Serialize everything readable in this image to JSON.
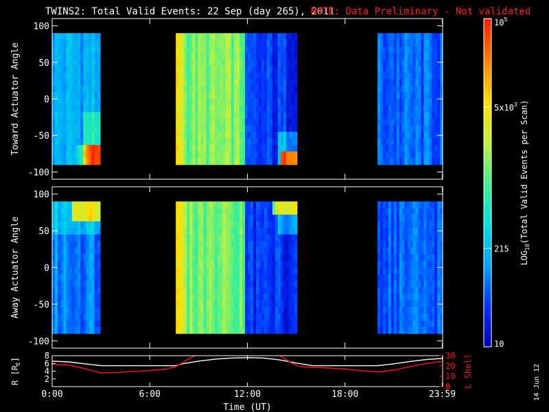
{
  "header": {
    "title": "TWINS2: Total Valid Events: 22 Sep (day 265), 2011",
    "note": "NOTE: Data Preliminary - Not validated",
    "note_color": "#ff1a1a"
  },
  "stamp": "14 Jun 12",
  "chart_data": [
    {
      "type": "heatmap",
      "ylabel": "Toward Actuator Angle",
      "ylim": [
        -110,
        110
      ],
      "yticks": [
        100,
        50,
        0,
        -50,
        -100
      ],
      "x_unit": "hours UT",
      "data_y_range": [
        -90,
        90
      ],
      "blocks": [
        {
          "x": [
            0.0,
            2.95
          ],
          "base_level": 0.28,
          "features": "orange/yellow enhancement near -80 to -90 degrees after ~1:30 UT"
        },
        {
          "x": [
            7.6,
            11.85
          ],
          "base_level": 0.55,
          "features": "yellow/green band, yellow near start"
        },
        {
          "x": [
            11.85,
            15.05
          ],
          "base_level": 0.12,
          "features": "dark blue with orange enhancement near -80 degrees at end"
        },
        {
          "x": [
            20.0,
            24.0
          ],
          "base_level": 0.18,
          "features": "uniform blue"
        }
      ]
    },
    {
      "type": "heatmap",
      "ylabel": "Away Actuator Angle",
      "ylim": [
        -110,
        110
      ],
      "yticks": [
        100,
        50,
        0,
        -50,
        -100
      ],
      "x_unit": "hours UT",
      "data_y_range": [
        -90,
        90
      ],
      "blocks": [
        {
          "x": [
            0.0,
            2.95
          ],
          "base_level": 0.22,
          "features": "yellow/green near +80 to +90 degrees"
        },
        {
          "x": [
            7.6,
            11.85
          ],
          "base_level": 0.55,
          "features": "yellow/green band"
        },
        {
          "x": [
            11.85,
            15.05
          ],
          "base_level": 0.12,
          "features": "dark blue with yellow near +90 degrees"
        },
        {
          "x": [
            20.0,
            24.0
          ],
          "base_level": 0.18,
          "features": "uniform blue"
        }
      ]
    },
    {
      "type": "line",
      "ylabel_left": "R [R",
      "ylabel_left_sub": "E",
      "ylabel_left_end": "]",
      "ylabel_right": "L Shell",
      "ylim_left": [
        0,
        8
      ],
      "ylim_right": [
        0,
        30
      ],
      "yticks_left": [
        2,
        4,
        6,
        8
      ],
      "yticks_right": [
        0,
        10,
        20,
        30
      ],
      "xlabel": "Time (UT)",
      "xlim": [
        0,
        24
      ],
      "xticks": [
        {
          "v": 0,
          "label": "0:00"
        },
        {
          "v": 6,
          "label": "6:00"
        },
        {
          "v": 12,
          "label": "12:00"
        },
        {
          "v": 18,
          "label": "18:00"
        },
        {
          "v": 23.98,
          "label": "23:59"
        }
      ],
      "series": [
        {
          "color": "#ffffff",
          "axis": "left",
          "x": [
            0,
            1,
            2,
            3,
            4,
            5,
            6,
            7,
            7.6,
            8,
            9,
            10,
            11,
            12,
            13,
            14,
            15,
            16,
            17,
            18,
            19,
            20,
            21,
            22,
            23,
            24
          ],
          "y": [
            6.6,
            6.4,
            5.9,
            5.4,
            5.4,
            5.4,
            5.4,
            5.4,
            5.4,
            5.9,
            6.6,
            7.1,
            7.4,
            7.5,
            7.4,
            6.9,
            6.1,
            5.4,
            5.4,
            5.4,
            5.4,
            5.4,
            5.9,
            6.5,
            7.0,
            7.3
          ]
        },
        {
          "color": "#ff1010",
          "axis": "right",
          "x": [
            0,
            1,
            2,
            3,
            4,
            5,
            6,
            7,
            7.6,
            8,
            8.4,
            8.9,
            13.9,
            14.3,
            14.8,
            15.2,
            16,
            17,
            18,
            19,
            20,
            21,
            22,
            23,
            24
          ],
          "y": [
            21.5,
            21,
            17.5,
            13.2,
            13.8,
            14.6,
            15.6,
            17,
            19.5,
            23,
            27,
            31,
            31,
            27,
            22,
            19.5,
            18.7,
            18,
            17,
            15.5,
            14.2,
            16,
            19.5,
            22.5,
            24.5
          ]
        }
      ]
    }
  ],
  "colorbar": {
    "label_main": "LOG",
    "label_sub": "10",
    "label_rest": "(Total Valid Events per Scan)",
    "ticks": [
      {
        "v": 1.0,
        "main": "10",
        "exp": "5"
      },
      {
        "v": 0.73,
        "main": "5x10",
        "exp": "3"
      },
      {
        "v": 0.3,
        "main": "215",
        "exp": ""
      },
      {
        "v": 0.0,
        "main": "10",
        "exp": ""
      }
    ],
    "colors": [
      "#0000b0",
      "#0030ff",
      "#00a0ff",
      "#00e0e0",
      "#40f090",
      "#c0f040",
      "#ffe000",
      "#ff8000",
      "#ff2000"
    ]
  }
}
